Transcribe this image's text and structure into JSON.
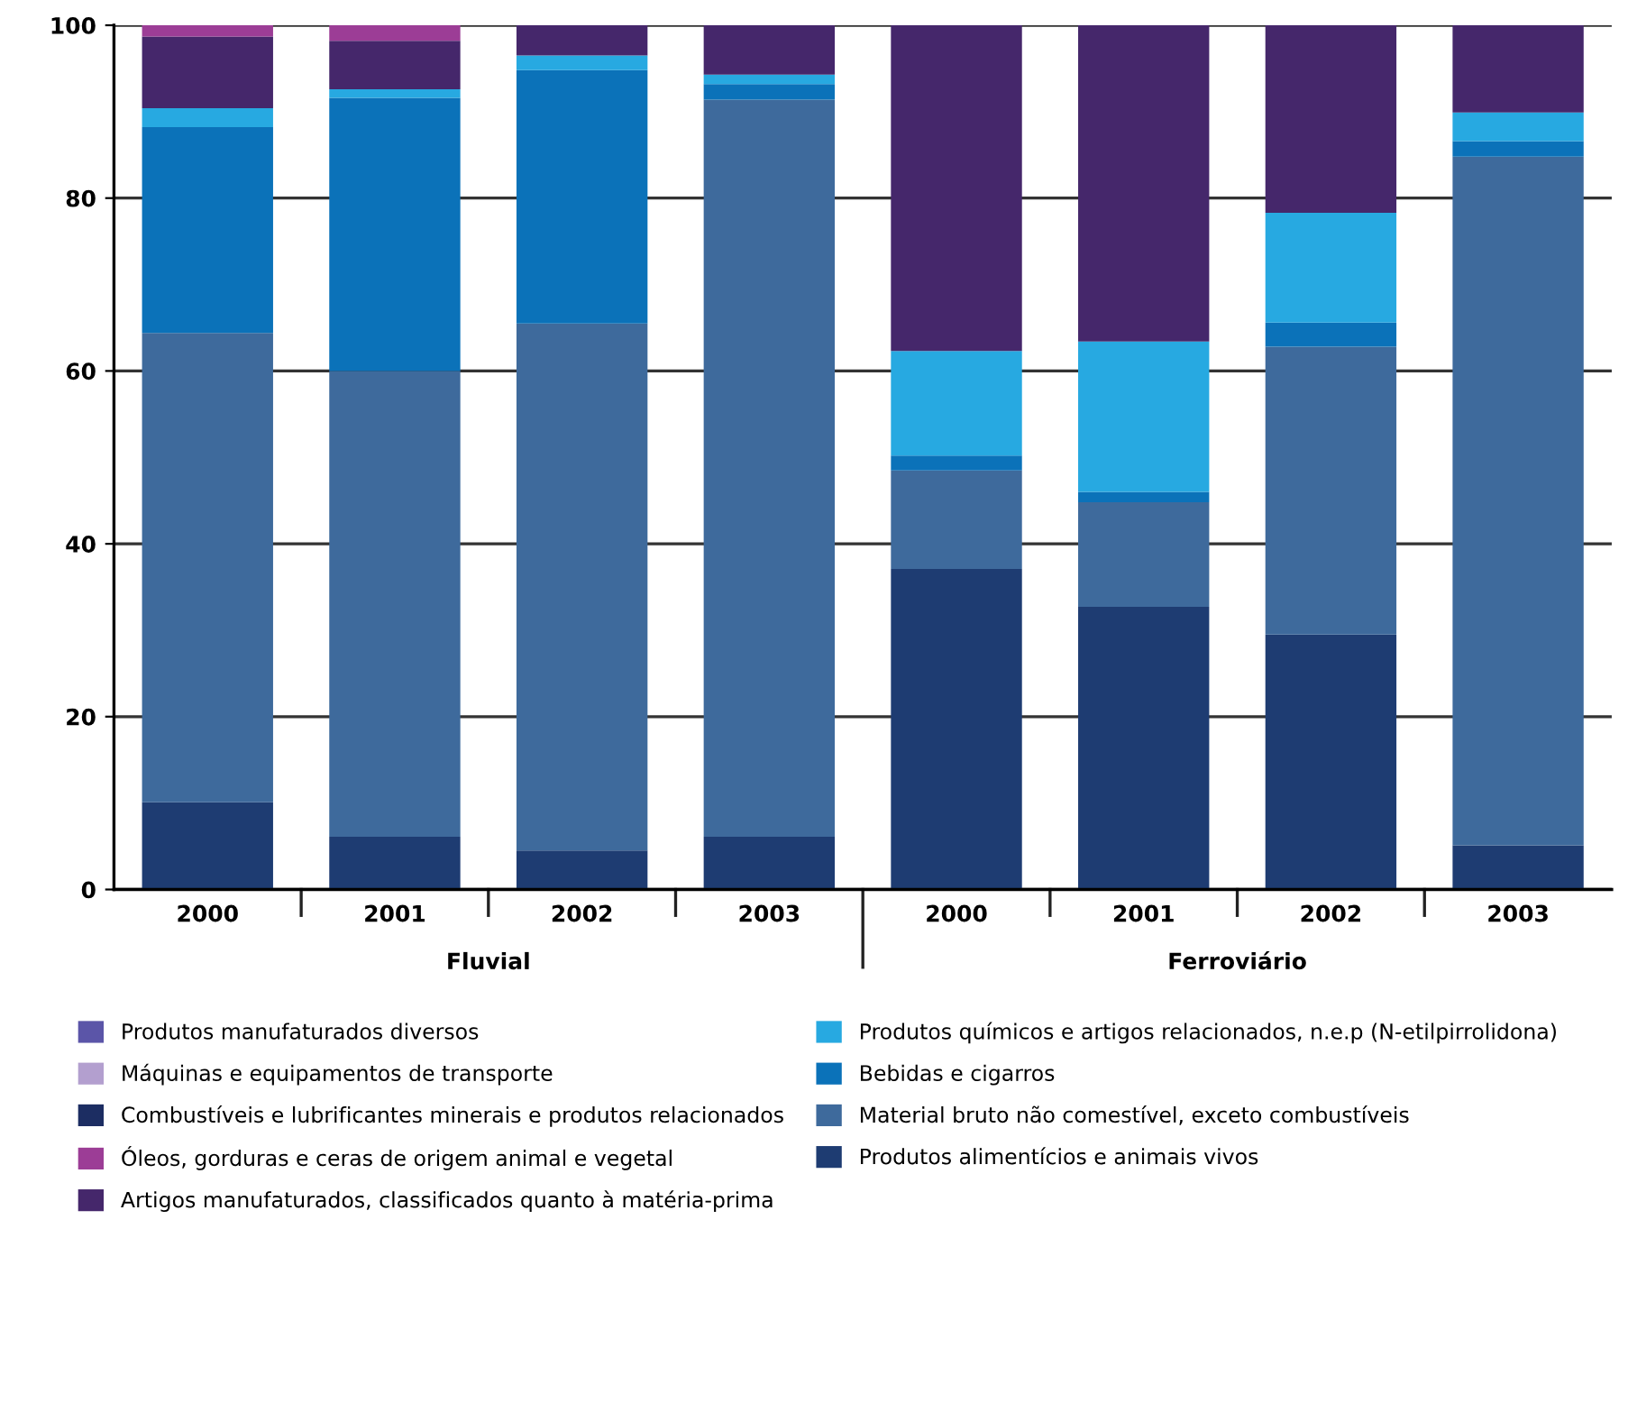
{
  "chart_data": {
    "type": "bar",
    "stacked": true,
    "categories": [
      "2000",
      "2001",
      "2002",
      "2003",
      "2000",
      "2001",
      "2002",
      "2003"
    ],
    "series": [
      {
        "name": "Produtos alimentícios e animais vivos",
        "color": "#1e3c72",
        "values": [
          10.1,
          6.1,
          4.5,
          6.1,
          37.1,
          32.7,
          29.5,
          5.1
        ]
      },
      {
        "name": "Material bruto não comestível, exceto combustíveis",
        "color": "#3e6a9c",
        "values": [
          54.3,
          53.9,
          61.0,
          85.3,
          11.4,
          12.1,
          33.3,
          79.7
        ]
      },
      {
        "name": "Bebidas e cigarros",
        "color": "#0b72b9",
        "values": [
          23.8,
          31.6,
          29.3,
          1.8,
          1.7,
          1.2,
          2.8,
          1.8
        ]
      },
      {
        "name": "Produtos químicos e artigos relacionados, n.e.p (N-etilpirrolidona)",
        "color": "#27a9e1",
        "values": [
          2.2,
          1.0,
          1.7,
          1.1,
          12.1,
          17.4,
          12.7,
          3.3
        ]
      },
      {
        "name": "Artigos manufaturados, classificados quanto à matéria-prima",
        "color": "#45276b",
        "values": [
          8.3,
          5.6,
          3.5,
          5.7,
          37.7,
          36.6,
          21.7,
          10.1
        ]
      },
      {
        "name": "Óleos, gorduras e ceras de origem animal e vegetal",
        "color": "#9c3d96",
        "values": [
          1.3,
          1.8,
          0,
          0,
          0,
          0,
          0,
          0
        ]
      },
      {
        "name": "Combustíveis e lubrificantes minerais e produtos relacionados",
        "color": "#1c2d62",
        "values": [
          0,
          0,
          0,
          0,
          0,
          0,
          0,
          0
        ]
      },
      {
        "name": "Máquinas e equipamentos de transporte",
        "color": "#b39fcf",
        "values": [
          0,
          0,
          0,
          0,
          0,
          0,
          0,
          0
        ]
      },
      {
        "name": "Produtos manufaturados diversos",
        "color": "#5b55a8",
        "values": [
          0,
          0,
          0,
          0,
          0,
          0,
          0,
          0
        ]
      }
    ],
    "ylim": [
      0,
      100
    ],
    "yticks": [
      0,
      20,
      40,
      60,
      80,
      100
    ],
    "grid": "y",
    "legend": "bottom",
    "annotations": [
      "Fluvial",
      "Ferroviário"
    ]
  }
}
